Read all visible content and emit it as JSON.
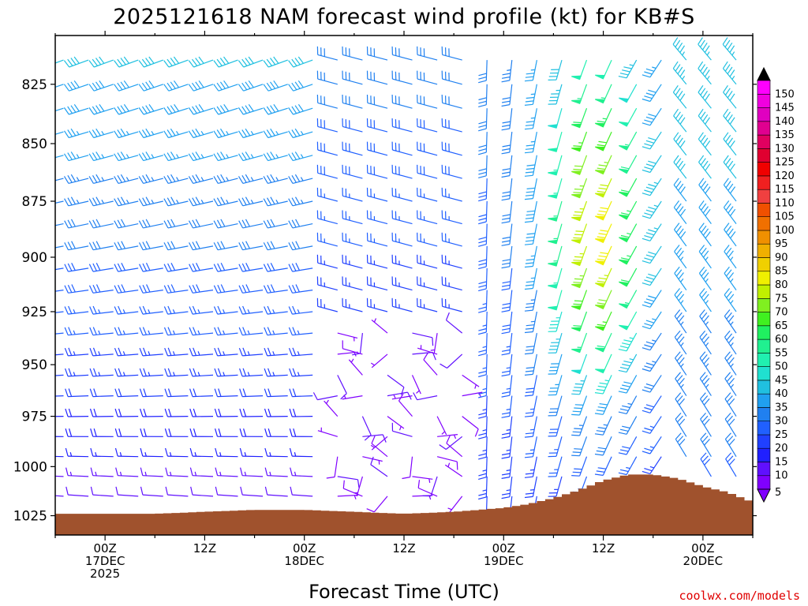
{
  "chart_data": {
    "type": "wind-barb-time-height",
    "title": "2025121618 NAM forecast wind profile (kt) for KB#S",
    "xlabel": "Forecast Time (UTC)",
    "ylabel": "",
    "units": "kt",
    "y_axis": {
      "label": "",
      "range": [
        1035,
        805
      ],
      "ticks": [
        825,
        850,
        875,
        900,
        925,
        950,
        975,
        1000,
        1025
      ]
    },
    "x_axis": {
      "range_hours": [
        -6,
        78
      ],
      "ticks": [
        {
          "hour": 0,
          "lines": [
            "00Z",
            "17DEC",
            "2025"
          ]
        },
        {
          "hour": 12,
          "lines": [
            "12Z"
          ]
        },
        {
          "hour": 24,
          "lines": [
            "00Z",
            "18DEC"
          ]
        },
        {
          "hour": 36,
          "lines": [
            "12Z"
          ]
        },
        {
          "hour": 48,
          "lines": [
            "00Z",
            "19DEC"
          ]
        },
        {
          "hour": 60,
          "lines": [
            "12Z"
          ]
        },
        {
          "hour": 72,
          "lines": [
            "00Z",
            "20DEC"
          ]
        }
      ]
    },
    "levels_hpa": [
      815,
      825,
      835,
      845,
      855,
      865,
      875,
      885,
      895,
      905,
      915,
      925,
      935,
      945,
      955,
      965,
      975,
      985,
      995,
      1005,
      1015,
      1025
    ],
    "surface_pressure": {
      "hours": [
        -6,
        0,
        6,
        12,
        18,
        24,
        30,
        36,
        42,
        48,
        51,
        54,
        57,
        60,
        63,
        66,
        69,
        72,
        75,
        78
      ],
      "values": [
        1024,
        1024,
        1024,
        1023,
        1022,
        1022,
        1023,
        1024,
        1023,
        1021,
        1019,
        1016,
        1012,
        1007,
        1004,
        1004,
        1006,
        1010,
        1013,
        1018
      ]
    },
    "wind_key_points": [
      {
        "hour": -6,
        "description": "westerly 30-40 kt aloft, 5-15 kt near surface"
      },
      {
        "hour": 36,
        "description": "light and variable below 920 hPa"
      },
      {
        "hour": 60,
        "description": "southerly jet 70-80 kt near 850-900 hPa"
      },
      {
        "hour": 78,
        "description": "northwesterly 30-45 kt"
      }
    ],
    "colorbar": {
      "ticks": [
        5,
        10,
        15,
        20,
        25,
        30,
        35,
        40,
        45,
        50,
        55,
        60,
        65,
        70,
        75,
        80,
        85,
        90,
        95,
        100,
        105,
        110,
        115,
        120,
        125,
        130,
        135,
        140,
        145,
        150
      ],
      "colors": [
        "#8000ff",
        "#6010ff",
        "#2020ff",
        "#2040ff",
        "#2060ff",
        "#2080f0",
        "#20a0f0",
        "#20c0e0",
        "#20e0d0",
        "#20f0b0",
        "#20f090",
        "#20f060",
        "#40f020",
        "#80f020",
        "#c0f000",
        "#f0f000",
        "#f0d000",
        "#f0b000",
        "#f09000",
        "#f07000",
        "#f05000",
        "#f04040",
        "#f02020",
        "#f00000",
        "#e00030",
        "#e00060",
        "#e00090",
        "#e000c0",
        "#f000e0",
        "#ff00ff"
      ]
    },
    "surface_color": "#a0522d",
    "credit": "coolwx.com/models",
    "credit_color": "#e00000"
  }
}
